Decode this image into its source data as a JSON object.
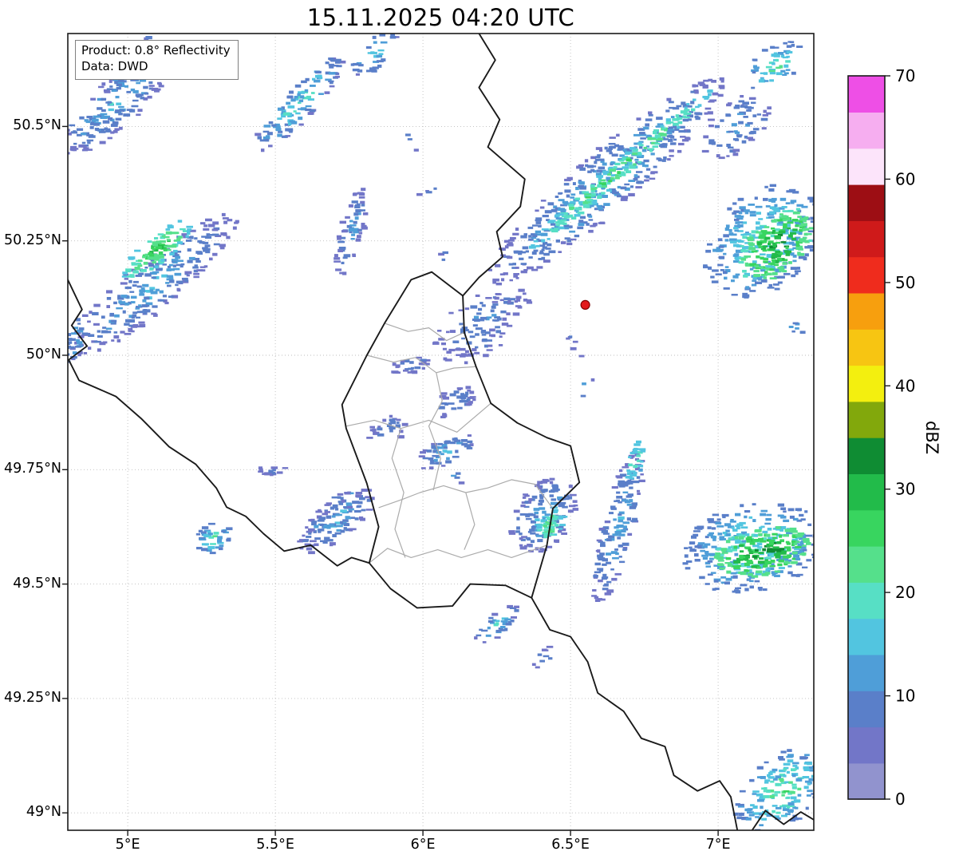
{
  "title": "15.11.2025 04:20 UTC",
  "info_box": {
    "line1": "Product: 0.8° Reflectivity",
    "line2": "Data: DWD"
  },
  "colorbar": {
    "label": "dBZ",
    "min": 0,
    "max": 70,
    "ticks": [
      0,
      10,
      20,
      30,
      40,
      50,
      60,
      70
    ],
    "segments": [
      {
        "from": 0,
        "to": 3.5,
        "color": "#9193ce"
      },
      {
        "from": 3.5,
        "to": 7,
        "color": "#7276c8"
      },
      {
        "from": 7,
        "to": 10.5,
        "color": "#5a7fc9"
      },
      {
        "from": 10.5,
        "to": 14,
        "color": "#4f9ed8"
      },
      {
        "from": 14,
        "to": 17.5,
        "color": "#52c5e0"
      },
      {
        "from": 17.5,
        "to": 21,
        "color": "#57dfc5"
      },
      {
        "from": 21,
        "to": 24.5,
        "color": "#55e08b"
      },
      {
        "from": 24.5,
        "to": 28,
        "color": "#38d55f"
      },
      {
        "from": 28,
        "to": 31.5,
        "color": "#22bb4a"
      },
      {
        "from": 31.5,
        "to": 35,
        "color": "#0f8c33"
      },
      {
        "from": 35,
        "to": 38.5,
        "color": "#82a80c"
      },
      {
        "from": 38.5,
        "to": 42,
        "color": "#f3ef0f"
      },
      {
        "from": 42,
        "to": 45.5,
        "color": "#f7c512"
      },
      {
        "from": 45.5,
        "to": 49,
        "color": "#f79f0e"
      },
      {
        "from": 49,
        "to": 52.5,
        "color": "#ef2c1d"
      },
      {
        "from": 52.5,
        "to": 56,
        "color": "#cf1a1a"
      },
      {
        "from": 56,
        "to": 59.5,
        "color": "#9d0e14"
      },
      {
        "from": 59.5,
        "to": 63,
        "color": "#fce4fa"
      },
      {
        "from": 63,
        "to": 66.5,
        "color": "#f6aef0"
      },
      {
        "from": 66.5,
        "to": 70,
        "color": "#ee4fe6"
      }
    ]
  },
  "map": {
    "xlim": [
      4.797,
      7.324
    ],
    "ylim": [
      48.962,
      50.703
    ],
    "xticks": [
      {
        "value": 5,
        "label": "5°E"
      },
      {
        "value": 5.5,
        "label": "5.5°E"
      },
      {
        "value": 6,
        "label": "6°E"
      },
      {
        "value": 6.5,
        "label": "6.5°E"
      },
      {
        "value": 7,
        "label": "7°E"
      }
    ],
    "yticks": [
      {
        "value": 49,
        "label": "49°N"
      },
      {
        "value": 49.25,
        "label": "49.25°N"
      },
      {
        "value": 49.5,
        "label": "49.5°N"
      },
      {
        "value": 49.75,
        "label": "49.75°N"
      },
      {
        "value": 50,
        "label": "50°N"
      },
      {
        "value": 50.25,
        "label": "50.25°N"
      },
      {
        "value": 50.5,
        "label": "50.5°N"
      }
    ],
    "marker": {
      "lon": 6.55,
      "lat": 50.11,
      "color": "#e31a1c"
    },
    "borders": {
      "black": [
        [
          [
            6.19,
            50.703
          ],
          [
            6.245,
            50.645
          ],
          [
            6.19,
            50.585
          ],
          [
            6.26,
            50.515
          ],
          [
            6.22,
            50.455
          ],
          [
            6.345,
            50.385
          ],
          [
            6.33,
            50.325
          ],
          [
            6.25,
            50.27
          ],
          [
            6.27,
            50.215
          ],
          [
            6.19,
            50.17
          ],
          [
            6.135,
            50.13
          ]
        ],
        [
          [
            6.03,
            50.182
          ],
          [
            6.135,
            50.13
          ],
          [
            6.14,
            50.05
          ],
          [
            6.18,
            49.975
          ],
          [
            6.23,
            49.895
          ],
          [
            6.32,
            49.852
          ],
          [
            6.42,
            49.82
          ],
          [
            6.5,
            49.802
          ],
          [
            6.53,
            49.722
          ],
          [
            6.44,
            49.665
          ],
          [
            6.42,
            49.585
          ],
          [
            6.368,
            49.47
          ],
          [
            6.28,
            49.497
          ],
          [
            6.16,
            49.5
          ],
          [
            6.1,
            49.452
          ],
          [
            5.98,
            49.448
          ],
          [
            5.89,
            49.49
          ],
          [
            5.818,
            49.546
          ],
          [
            5.85,
            49.625
          ],
          [
            5.81,
            49.72
          ],
          [
            5.74,
            49.84
          ],
          [
            5.726,
            49.892
          ],
          [
            5.81,
            50.0
          ],
          [
            5.87,
            50.07
          ],
          [
            5.96,
            50.165
          ],
          [
            6.03,
            50.182
          ]
        ],
        [
          [
            4.797,
            50.165
          ],
          [
            4.845,
            50.1
          ],
          [
            4.81,
            50.065
          ],
          [
            4.862,
            50.02
          ],
          [
            4.8,
            49.99
          ],
          [
            4.835,
            49.945
          ],
          [
            4.96,
            49.91
          ],
          [
            5.045,
            49.862
          ],
          [
            5.14,
            49.8
          ],
          [
            5.23,
            49.762
          ],
          [
            5.3,
            49.71
          ],
          [
            5.335,
            49.668
          ],
          [
            5.4,
            49.648
          ],
          [
            5.46,
            49.61
          ],
          [
            5.53,
            49.572
          ],
          [
            5.62,
            49.585
          ],
          [
            5.71,
            49.54
          ],
          [
            5.758,
            49.558
          ],
          [
            5.818,
            49.546
          ]
        ],
        [
          [
            6.368,
            49.47
          ],
          [
            6.43,
            49.4
          ],
          [
            6.5,
            49.385
          ],
          [
            6.558,
            49.33
          ],
          [
            6.592,
            49.262
          ],
          [
            6.68,
            49.222
          ],
          [
            6.74,
            49.163
          ],
          [
            6.82,
            49.145
          ],
          [
            6.85,
            49.082
          ],
          [
            6.93,
            49.048
          ],
          [
            7.005,
            49.07
          ],
          [
            7.043,
            49.035
          ],
          [
            7.065,
            48.962
          ]
        ],
        [
          [
            7.115,
            48.962
          ],
          [
            7.16,
            49.005
          ],
          [
            7.222,
            48.975
          ],
          [
            7.28,
            49.002
          ],
          [
            7.324,
            48.985
          ]
        ]
      ],
      "gray": [
        [
          [
            5.81,
            50.0
          ],
          [
            5.9,
            49.985
          ],
          [
            5.975,
            49.995
          ],
          [
            6.045,
            49.962
          ],
          [
            6.105,
            49.972
          ],
          [
            6.18,
            49.975
          ]
        ],
        [
          [
            5.74,
            49.845
          ],
          [
            5.835,
            49.858
          ],
          [
            5.925,
            49.84
          ],
          [
            6.02,
            49.858
          ],
          [
            6.115,
            49.832
          ],
          [
            6.23,
            49.895
          ]
        ],
        [
          [
            5.85,
            49.667
          ],
          [
            5.93,
            49.685
          ],
          [
            5.99,
            49.7
          ],
          [
            6.07,
            49.715
          ],
          [
            6.145,
            49.7
          ],
          [
            6.22,
            49.71
          ],
          [
            6.3,
            49.728
          ],
          [
            6.38,
            49.718
          ],
          [
            6.44,
            49.665
          ]
        ],
        [
          [
            5.818,
            49.546
          ],
          [
            5.88,
            49.578
          ],
          [
            5.96,
            49.558
          ],
          [
            6.05,
            49.575
          ],
          [
            6.13,
            49.558
          ],
          [
            6.22,
            49.575
          ],
          [
            6.3,
            49.558
          ],
          [
            6.42,
            49.585
          ]
        ],
        [
          [
            6.045,
            49.962
          ],
          [
            6.065,
            49.9
          ],
          [
            6.02,
            49.845
          ],
          [
            6.06,
            49.775
          ],
          [
            6.035,
            49.705
          ]
        ],
        [
          [
            5.925,
            49.84
          ],
          [
            5.895,
            49.775
          ],
          [
            5.935,
            49.7
          ],
          [
            5.905,
            49.62
          ],
          [
            5.94,
            49.558
          ]
        ],
        [
          [
            6.145,
            49.7
          ],
          [
            6.175,
            49.63
          ],
          [
            6.14,
            49.575
          ]
        ],
        [
          [
            5.87,
            50.07
          ],
          [
            5.95,
            50.052
          ],
          [
            6.02,
            50.06
          ],
          [
            6.08,
            50.032
          ],
          [
            6.14,
            50.05
          ]
        ]
      ]
    }
  },
  "chart_data": {
    "type": "heatmap",
    "units": "dBZ",
    "description": "radar reflectivity echo clusters: c=[lon,lat] center, len/wid in deg, ang deg from east, base/peak dBZ, n cells",
    "clusters": [
      {
        "name": "nw-band",
        "c": [
          4.96,
          50.55
        ],
        "len": 0.5,
        "wid": 0.16,
        "ang": 42,
        "base": 4,
        "peak": 16,
        "n": 260
      },
      {
        "name": "nw-band-top",
        "c": [
          5.02,
          50.64
        ],
        "len": 0.3,
        "wid": 0.1,
        "ang": 40,
        "base": 5,
        "peak": 18,
        "n": 90
      },
      {
        "name": "w-band",
        "c": [
          5.08,
          50.15
        ],
        "len": 0.75,
        "wid": 0.17,
        "ang": 40,
        "base": 4,
        "peak": 15,
        "n": 380
      },
      {
        "name": "w-band-core",
        "c": [
          5.1,
          50.23
        ],
        "len": 0.3,
        "wid": 0.09,
        "ang": 40,
        "base": 15,
        "peak": 30,
        "n": 150
      },
      {
        "name": "top-band",
        "c": [
          5.58,
          50.55
        ],
        "len": 0.45,
        "wid": 0.11,
        "ang": 48,
        "base": 5,
        "peak": 20,
        "n": 180
      },
      {
        "name": "top-small",
        "c": [
          5.84,
          50.66
        ],
        "len": 0.2,
        "wid": 0.1,
        "ang": 40,
        "base": 6,
        "peak": 18,
        "n": 55
      },
      {
        "name": "cl-band",
        "c": [
          5.76,
          50.27
        ],
        "len": 0.32,
        "wid": 0.08,
        "ang": 75,
        "base": 4,
        "peak": 13,
        "n": 85
      },
      {
        "name": "ne-band",
        "c": [
          6.62,
          50.38
        ],
        "len": 1.05,
        "wid": 0.2,
        "ang": 41,
        "base": 5,
        "peak": 16,
        "n": 650
      },
      {
        "name": "ne-band-core",
        "c": [
          6.66,
          50.4
        ],
        "len": 0.85,
        "wid": 0.06,
        "ang": 41,
        "base": 15,
        "peak": 26,
        "n": 240
      },
      {
        "name": "ne-tail",
        "c": [
          6.2,
          50.07
        ],
        "len": 0.4,
        "wid": 0.2,
        "ang": 40,
        "base": 4,
        "peak": 11,
        "n": 160
      },
      {
        "name": "ne-extra",
        "c": [
          7.06,
          50.5
        ],
        "len": 0.28,
        "wid": 0.16,
        "ang": 40,
        "base": 5,
        "peak": 13,
        "n": 100
      },
      {
        "name": "tr-patch",
        "c": [
          7.19,
          50.63
        ],
        "len": 0.22,
        "wid": 0.13,
        "ang": 40,
        "base": 7,
        "peak": 22,
        "n": 85
      },
      {
        "name": "e-blob",
        "c": [
          7.15,
          50.25
        ],
        "len": 0.45,
        "wid": 0.33,
        "ang": 45,
        "base": 7,
        "peak": 20,
        "n": 420
      },
      {
        "name": "e-blob-core",
        "c": [
          7.2,
          50.24
        ],
        "len": 0.3,
        "wid": 0.18,
        "ang": 45,
        "base": 20,
        "peak": 33,
        "n": 260
      },
      {
        "name": "lux-a",
        "c": [
          5.96,
          49.98
        ],
        "len": 0.14,
        "wid": 0.06,
        "ang": 10,
        "base": 4,
        "peak": 11,
        "n": 35
      },
      {
        "name": "lux-b",
        "c": [
          6.11,
          49.9
        ],
        "len": 0.16,
        "wid": 0.09,
        "ang": 30,
        "base": 4,
        "peak": 13,
        "n": 55
      },
      {
        "name": "lux-c",
        "c": [
          5.89,
          49.84
        ],
        "len": 0.16,
        "wid": 0.08,
        "ang": 15,
        "base": 4,
        "peak": 11,
        "n": 45
      },
      {
        "name": "lux-d",
        "c": [
          6.08,
          49.79
        ],
        "len": 0.22,
        "wid": 0.09,
        "ang": 25,
        "base": 5,
        "peak": 15,
        "n": 80
      },
      {
        "name": "w-patch",
        "c": [
          5.49,
          49.75
        ],
        "len": 0.09,
        "wid": 0.05,
        "ang": 0,
        "base": 4,
        "peak": 9,
        "n": 20
      },
      {
        "name": "sw-band",
        "c": [
          5.71,
          49.64
        ],
        "len": 0.32,
        "wid": 0.13,
        "ang": 38,
        "base": 4,
        "peak": 15,
        "n": 175
      },
      {
        "name": "sw-small",
        "c": [
          5.29,
          49.6
        ],
        "len": 0.13,
        "wid": 0.1,
        "ang": 40,
        "base": 7,
        "peak": 20,
        "n": 55
      },
      {
        "name": "s-mid",
        "c": [
          6.41,
          49.65
        ],
        "len": 0.28,
        "wid": 0.19,
        "ang": 55,
        "base": 5,
        "peak": 14,
        "n": 185
      },
      {
        "name": "s-mid-core",
        "c": [
          6.43,
          49.63
        ],
        "len": 0.13,
        "wid": 0.08,
        "ang": 55,
        "base": 14,
        "peak": 25,
        "n": 60
      },
      {
        "name": "se-arc",
        "c": [
          6.66,
          49.62
        ],
        "len": 0.55,
        "wid": 0.11,
        "ang": 76,
        "base": 5,
        "peak": 14,
        "n": 210
      },
      {
        "name": "se-arc-core",
        "c": [
          6.72,
          49.77
        ],
        "len": 0.16,
        "wid": 0.06,
        "ang": 70,
        "base": 13,
        "peak": 21,
        "n": 45
      },
      {
        "name": "se-blob",
        "c": [
          7.12,
          49.58
        ],
        "len": 0.48,
        "wid": 0.3,
        "ang": 12,
        "base": 7,
        "peak": 21,
        "n": 430
      },
      {
        "name": "se-blob-core",
        "c": [
          7.15,
          49.57
        ],
        "len": 0.32,
        "wid": 0.16,
        "ang": 12,
        "base": 21,
        "peak": 34,
        "n": 260
      },
      {
        "name": "s-band",
        "c": [
          6.25,
          49.41
        ],
        "len": 0.19,
        "wid": 0.07,
        "ang": 40,
        "base": 5,
        "peak": 17,
        "n": 60
      },
      {
        "name": "s-speck",
        "c": [
          6.41,
          49.34
        ],
        "len": 0.1,
        "wid": 0.05,
        "ang": 40,
        "base": 5,
        "peak": 11,
        "n": 22
      },
      {
        "name": "br-corner",
        "c": [
          7.22,
          49.05
        ],
        "len": 0.38,
        "wid": 0.22,
        "ang": 40,
        "base": 7,
        "peak": 23,
        "n": 240
      },
      {
        "name": "left-edge",
        "c": [
          4.82,
          50.03
        ],
        "len": 0.2,
        "wid": 0.07,
        "ang": 70,
        "base": 5,
        "peak": 15,
        "n": 50
      }
    ],
    "specks": [
      [
        5.98,
        50.46,
        8
      ],
      [
        6.08,
        50.22,
        7
      ],
      [
        6.56,
        49.93,
        8
      ],
      [
        7.27,
        50.06,
        10
      ],
      [
        5.73,
        49.69,
        8
      ],
      [
        6.12,
        49.73,
        10
      ],
      [
        6.35,
        50.12,
        6
      ],
      [
        6.52,
        50.02,
        7
      ],
      [
        6.02,
        50.35,
        6
      ]
    ]
  }
}
